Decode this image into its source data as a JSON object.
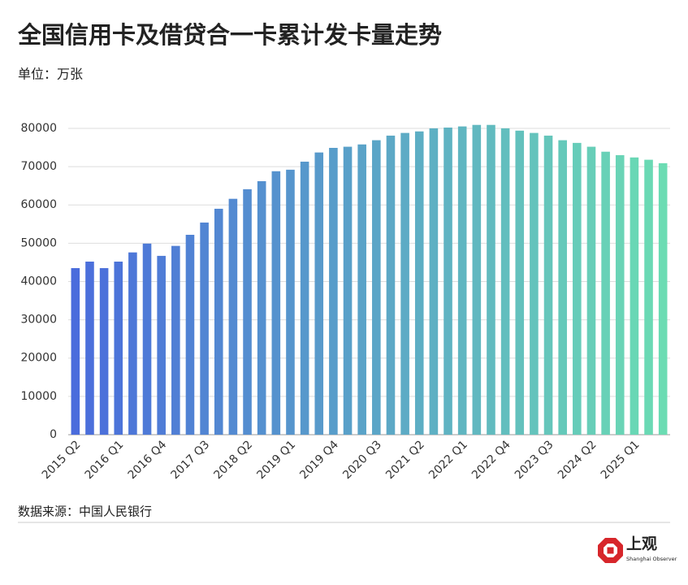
{
  "chart_data": {
    "type": "bar",
    "title": "全国信用卡及借贷合一卡累计发卡量走势",
    "subtitle": "单位：万张",
    "source": "数据来源：中国人民银行",
    "logo": {
      "name": "上观",
      "name_en": "Shanghai Observer"
    },
    "categories": [
      "2015 Q2",
      null,
      null,
      "2016 Q1",
      null,
      null,
      "2016 Q4",
      null,
      null,
      "2017 Q3",
      null,
      null,
      "2018 Q2",
      null,
      null,
      "2019 Q1",
      null,
      null,
      "2019 Q4",
      null,
      null,
      "2020 Q3",
      null,
      null,
      "2021 Q2",
      null,
      null,
      "2022 Q1",
      null,
      null,
      "2022 Q4",
      null,
      null,
      "2023 Q3",
      null,
      null,
      "2024 Q2",
      null,
      null,
      "2025 Q1",
      null,
      null
    ],
    "values": [
      43500,
      45200,
      43500,
      45200,
      47600,
      49900,
      46700,
      49300,
      52200,
      55400,
      59000,
      61600,
      64100,
      66200,
      68800,
      69200,
      71300,
      73700,
      74900,
      75200,
      75800,
      76900,
      78100,
      78800,
      79200,
      80000,
      80200,
      80500,
      80900,
      80900,
      80000,
      79400,
      78800,
      78100,
      76900,
      76200,
      75200,
      73900,
      73000,
      72400,
      71800,
      70900
    ],
    "gradient": [
      "#4a6cdc",
      "#6bdcb3"
    ],
    "ylim": [
      0,
      85000
    ],
    "yticks": [
      0,
      10000,
      20000,
      30000,
      40000,
      50000,
      60000,
      70000,
      80000
    ],
    "grid": true
  }
}
